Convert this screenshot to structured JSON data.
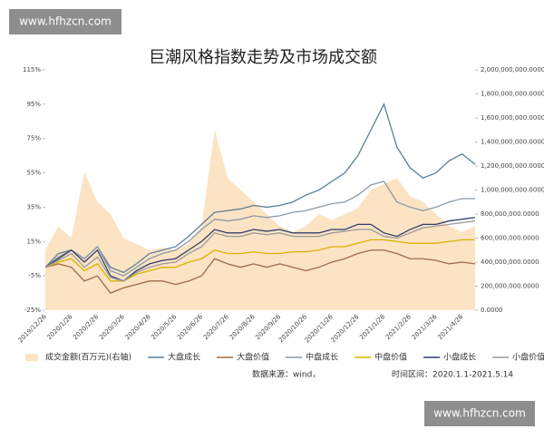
{
  "site_labels": [
    "www.hfhzcn.com",
    "www.hfhzcn.com"
  ],
  "chart_data": {
    "type": "line",
    "title": "巨潮风格指数走势及市场成交额",
    "source": "数据来源：wind，",
    "period": "时间区间：2020.1.1-2021.5.14",
    "categories": [
      "2019/12/26",
      null,
      "2020/1/26",
      null,
      "2020/2/26",
      null,
      "2020/3/26",
      null,
      "2020/4/26",
      null,
      "2020/5/26",
      null,
      "2020/6/26",
      null,
      "2020/7/26",
      null,
      "2020/8/26",
      null,
      "2020/9/26",
      null,
      "2020/10/26",
      null,
      "2020/11/26",
      null,
      "2020/12/26",
      null,
      "2021/1/26",
      null,
      "2021/2/26",
      null,
      "2021/3/26",
      null,
      "2021/4/26",
      null
    ],
    "ylim": [
      -25,
      115
    ],
    "yticks": [
      {
        "value": -25,
        "label": "-25%"
      },
      {
        "value": -5,
        "label": "-5%"
      },
      {
        "value": 15,
        "label": "15%"
      },
      {
        "value": 35,
        "label": "35%"
      },
      {
        "value": 55,
        "label": "55%"
      },
      {
        "value": 75,
        "label": "75%"
      },
      {
        "value": 95,
        "label": "95%"
      },
      {
        "value": 115,
        "label": "115%"
      }
    ],
    "y2lim": [
      0,
      2000000000
    ],
    "y2ticks": [
      {
        "value": 0,
        "label": "0.0000"
      },
      {
        "value": 200000000,
        "label": "200,000,000.0000"
      },
      {
        "value": 400000000,
        "label": "400,000,000.0000"
      },
      {
        "value": 600000000,
        "label": "600,000,000.0000"
      },
      {
        "value": 800000000,
        "label": "800,000,000.0000"
      },
      {
        "value": 1000000000,
        "label": "1,000,000,000.0000"
      },
      {
        "value": 1200000000,
        "label": "1,200,000,000.0000"
      },
      {
        "value": 1400000000,
        "label": "1,400,000,000.0000"
      },
      {
        "value": 1600000000,
        "label": "1,600,000,000.0000"
      },
      {
        "value": 1800000000,
        "label": "1,800,000,000.0000"
      },
      {
        "value": 2000000000,
        "label": "2,000,000,000.0000"
      }
    ],
    "grid": false,
    "series": [
      {
        "name": "成交金额(百万元)(右轴)",
        "kind": "area",
        "axis": "y2",
        "color": "#fbe3c4",
        "values": [
          500000000,
          700000000,
          600000000,
          1150000000,
          900000000,
          800000000,
          600000000,
          550000000,
          500000000,
          520000000,
          500000000,
          550000000,
          700000000,
          1500000000,
          1100000000,
          1000000000,
          900000000,
          800000000,
          700000000,
          650000000,
          700000000,
          800000000,
          750000000,
          800000000,
          850000000,
          1000000000,
          1050000000,
          1100000000,
          950000000,
          900000000,
          800000000,
          700000000,
          650000000,
          700000000
        ]
      },
      {
        "name": "大盘成长",
        "color": "#5b7f95",
        "values": [
          0,
          8,
          10,
          5,
          12,
          0,
          -3,
          2,
          8,
          10,
          12,
          18,
          25,
          32,
          33,
          34,
          36,
          35,
          36,
          38,
          42,
          45,
          50,
          55,
          65,
          80,
          95,
          70,
          58,
          52,
          55,
          62,
          66,
          60
        ]
      },
      {
        "name": "大盘价值",
        "color": "#9c6b4a",
        "values": [
          0,
          2,
          0,
          -8,
          -5,
          -15,
          -12,
          -10,
          -8,
          -8,
          -10,
          -8,
          -5,
          5,
          2,
          0,
          2,
          0,
          2,
          0,
          -2,
          0,
          3,
          5,
          8,
          10,
          10,
          8,
          5,
          5,
          4,
          2,
          3,
          2
        ]
      },
      {
        "name": "中盘成长",
        "color": "#8a9aa8",
        "values": [
          0,
          6,
          10,
          5,
          12,
          -2,
          -5,
          0,
          5,
          8,
          10,
          15,
          22,
          28,
          27,
          28,
          30,
          29,
          30,
          32,
          33,
          35,
          37,
          38,
          42,
          48,
          50,
          38,
          35,
          33,
          35,
          38,
          40,
          40
        ]
      },
      {
        "name": "中盘价值",
        "color": "#d9b200",
        "values": [
          0,
          3,
          5,
          -2,
          2,
          -8,
          -8,
          -4,
          -2,
          0,
          0,
          3,
          5,
          10,
          8,
          8,
          9,
          8,
          8,
          9,
          9,
          10,
          12,
          12,
          14,
          16,
          16,
          15,
          14,
          14,
          14,
          15,
          16,
          16
        ]
      },
      {
        "name": "小盘成长",
        "color": "#2f3e6b",
        "values": [
          0,
          5,
          10,
          3,
          10,
          -5,
          -8,
          -2,
          2,
          4,
          5,
          10,
          15,
          22,
          20,
          20,
          22,
          21,
          22,
          20,
          20,
          20,
          22,
          22,
          25,
          25,
          20,
          18,
          22,
          25,
          25,
          27,
          28,
          29
        ]
      },
      {
        "name": "小盘价值",
        "color": "#9a9a9a",
        "values": [
          0,
          4,
          8,
          0,
          6,
          -6,
          -8,
          -3,
          0,
          2,
          3,
          8,
          12,
          20,
          18,
          18,
          20,
          19,
          20,
          18,
          18,
          18,
          20,
          21,
          22,
          22,
          18,
          17,
          20,
          23,
          24,
          25,
          26,
          27
        ]
      }
    ]
  }
}
